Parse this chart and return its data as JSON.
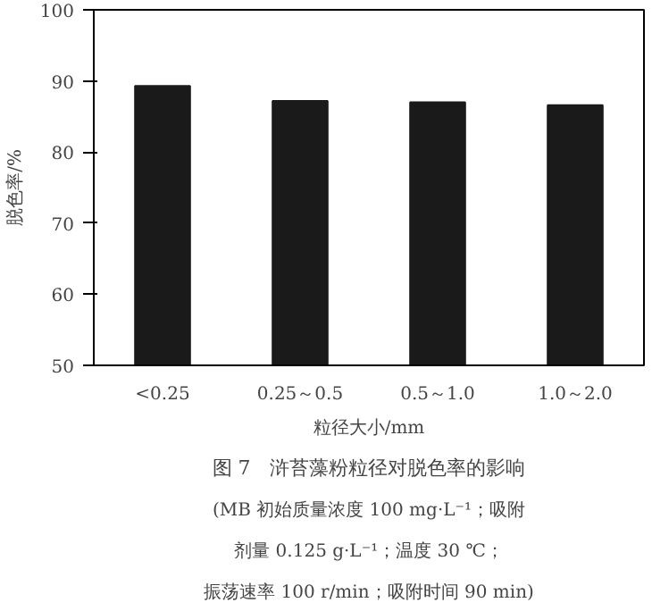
{
  "chart_data": {
    "type": "bar",
    "title": "图 7　浒苔藻粉粒径对脱色率的影响",
    "xlabel": "粒径大小/mm",
    "ylabel": "脱色率/%",
    "categories": [
      "<0.25",
      "0.25～0.5",
      "0.5～1.0",
      "1.0～2.0"
    ],
    "values": [
      89.3,
      87.2,
      87.0,
      86.6
    ],
    "color": "#1a1a1a",
    "ylim": [
      50,
      100
    ],
    "yticks": [
      50,
      60,
      70,
      80,
      90,
      100
    ],
    "grid": false,
    "annotations": [
      "(MB 初始质量浓度 100 mg·L⁻¹；吸附",
      "剂量 0.125 g·L⁻¹；温度 30 ℃；",
      "振荡速率 100 r/min；吸附时间 90 min)"
    ]
  }
}
